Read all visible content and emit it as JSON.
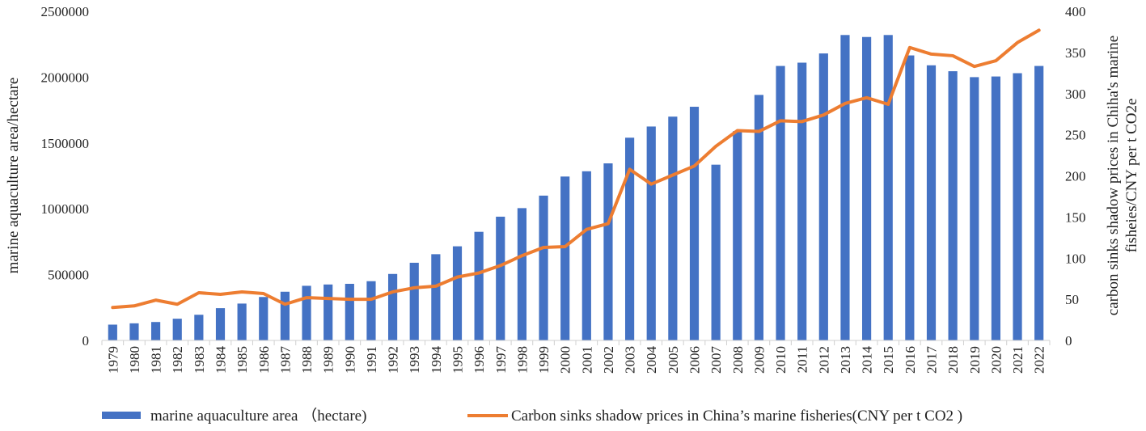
{
  "chart_data": {
    "type": "bar+line",
    "categories": [
      "1979",
      "1980",
      "1981",
      "1982",
      "1983",
      "1984",
      "1985",
      "1986",
      "1987",
      "1988",
      "1989",
      "1990",
      "1991",
      "1992",
      "1993",
      "1994",
      "1995",
      "1996",
      "1997",
      "1998",
      "1999",
      "2000",
      "2001",
      "2002",
      "2003",
      "2004",
      "2005",
      "2006",
      "2007",
      "2008",
      "2009",
      "2010",
      "2011",
      "2012",
      "2013",
      "2014",
      "2015",
      "2016",
      "2017",
      "2018",
      "2019",
      "2020",
      "2021",
      "2022"
    ],
    "series": [
      {
        "name": "marine aquaculture area （hectare)",
        "type": "bar",
        "axis": "left",
        "color": "#4472C4",
        "values": [
          120000,
          130000,
          140000,
          165000,
          195000,
          245000,
          280000,
          330000,
          370000,
          415000,
          425000,
          430000,
          450000,
          505000,
          590000,
          655000,
          715000,
          825000,
          940000,
          1005000,
          1100000,
          1245000,
          1285000,
          1345000,
          1540000,
          1625000,
          1700000,
          1775000,
          1335000,
          1590000,
          1865000,
          2085000,
          2110000,
          2180000,
          2320000,
          2305000,
          2320000,
          2165000,
          2090000,
          2045000,
          2000000,
          2005000,
          2030000,
          2085000
        ]
      },
      {
        "name": "Carbon sinks shadow prices in China’s marine fisheries(CNY per t CO2 )",
        "type": "line",
        "axis": "right",
        "color": "#ED7D31",
        "values": [
          40,
          42,
          49,
          44,
          58,
          56,
          59,
          57,
          44,
          52,
          51,
          50,
          50,
          59,
          64,
          66,
          77,
          82,
          91,
          103,
          113,
          114,
          135,
          142,
          208,
          190,
          201,
          212,
          236,
          255,
          254,
          267,
          266,
          274,
          288,
          295,
          287,
          356,
          348,
          346,
          333,
          340,
          362,
          377
        ]
      }
    ],
    "y_left": {
      "label": "marine aquaculture area/hectare",
      "min": 0,
      "max": 2500000,
      "ticks": [
        "0",
        "500000",
        "1000000",
        "1500000",
        "2000000",
        "2500000"
      ]
    },
    "y_right": {
      "label_line1": "carbon sinks shadow prices in Chiha's marine",
      "label_line2": "fisheies/CNY  per t CO2e",
      "min": 0,
      "max": 400,
      "ticks": [
        "0",
        "50",
        "100",
        "150",
        "200",
        "250",
        "300",
        "350",
        "400"
      ]
    },
    "grid": false,
    "legend": {
      "position": "bottom",
      "bar_label": "marine aquaculture area （hectare)",
      "line_label": "Carbon sinks shadow prices in China’s marine  fisheries(CNY  per t CO2 )"
    }
  }
}
